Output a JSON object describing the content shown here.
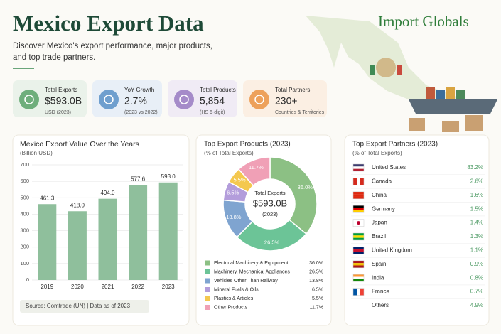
{
  "header": {
    "title": "Mexico Export Data",
    "subtitle_lines": [
      "Discover Mexico's export performance, major products,",
      "and top trade partners."
    ],
    "brand": "Import Globals"
  },
  "kpis": [
    {
      "label": "Total Exports",
      "value": "$593.0B",
      "note": "USD (2023)"
    },
    {
      "label": "YoY Growth",
      "value": "2.7%",
      "note": "(2023 vs 2022)"
    },
    {
      "label": "Total Products",
      "value": "5,854",
      "note": "(HS 6-digit)"
    },
    {
      "label": "Total Partners",
      "value": "230+",
      "note": "Countries & Territories"
    }
  ],
  "chart_data": [
    {
      "type": "bar",
      "title": "Mexico Export Value Over the Years",
      "subtitle": "(Billion USD)",
      "categories": [
        "2019",
        "2020",
        "2021",
        "2022",
        "2023"
      ],
      "values": [
        461.3,
        418.0,
        494.0,
        577.6,
        593.0
      ],
      "value_labels": [
        "461.3",
        "418.0",
        "494.0",
        "577.6",
        "593.0"
      ],
      "color": "#8fbf9c",
      "ylim": [
        0,
        700
      ],
      "yticks": [
        0,
        100,
        200,
        300,
        400,
        500,
        600,
        700
      ],
      "grid": true,
      "source": "Source: Comtrade (UN) | Data as of 2023"
    },
    {
      "type": "pie",
      "title": "Top Export Products (2023)",
      "subtitle": "(% of Total Exports)",
      "categories": [
        "Electrical Machinery & Equipment",
        "Machinery, Mechanical Appliances",
        "Vehicles Other Than Railway",
        "Mineral Fuels & Oils",
        "Plastics & Articles",
        "Other Products"
      ],
      "values": [
        36.0,
        26.5,
        13.8,
        6.5,
        5.5,
        11.7
      ],
      "value_labels": [
        "36.0%",
        "26.5%",
        "13.8%",
        "6.5%",
        "5.5%",
        "11.7%"
      ],
      "colors": [
        "#8cc084",
        "#6cc497",
        "#7fa4d0",
        "#b39ddb",
        "#f4c84f",
        "#f0a0b6"
      ],
      "center_label": "Total Exports",
      "center_value": "$593.0B",
      "center_note": "(2023)"
    }
  ],
  "partners": {
    "title": "Top Export Partners (2023)",
    "subtitle": "(% of Total Exports)",
    "rows": [
      {
        "name": "United States",
        "share": "83.2%"
      },
      {
        "name": "Canada",
        "share": "2.6%"
      },
      {
        "name": "China",
        "share": "1.6%"
      },
      {
        "name": "Germany",
        "share": "1.5%"
      },
      {
        "name": "Japan",
        "share": "1.4%"
      },
      {
        "name": "Brazil",
        "share": "1.3%"
      },
      {
        "name": "United Kingdom",
        "share": "1.1%"
      },
      {
        "name": "Spain",
        "share": "0.9%"
      },
      {
        "name": "India",
        "share": "0.8%"
      },
      {
        "name": "France",
        "share": "0.7%"
      },
      {
        "name": "Others",
        "share": "4.9%"
      }
    ]
  }
}
